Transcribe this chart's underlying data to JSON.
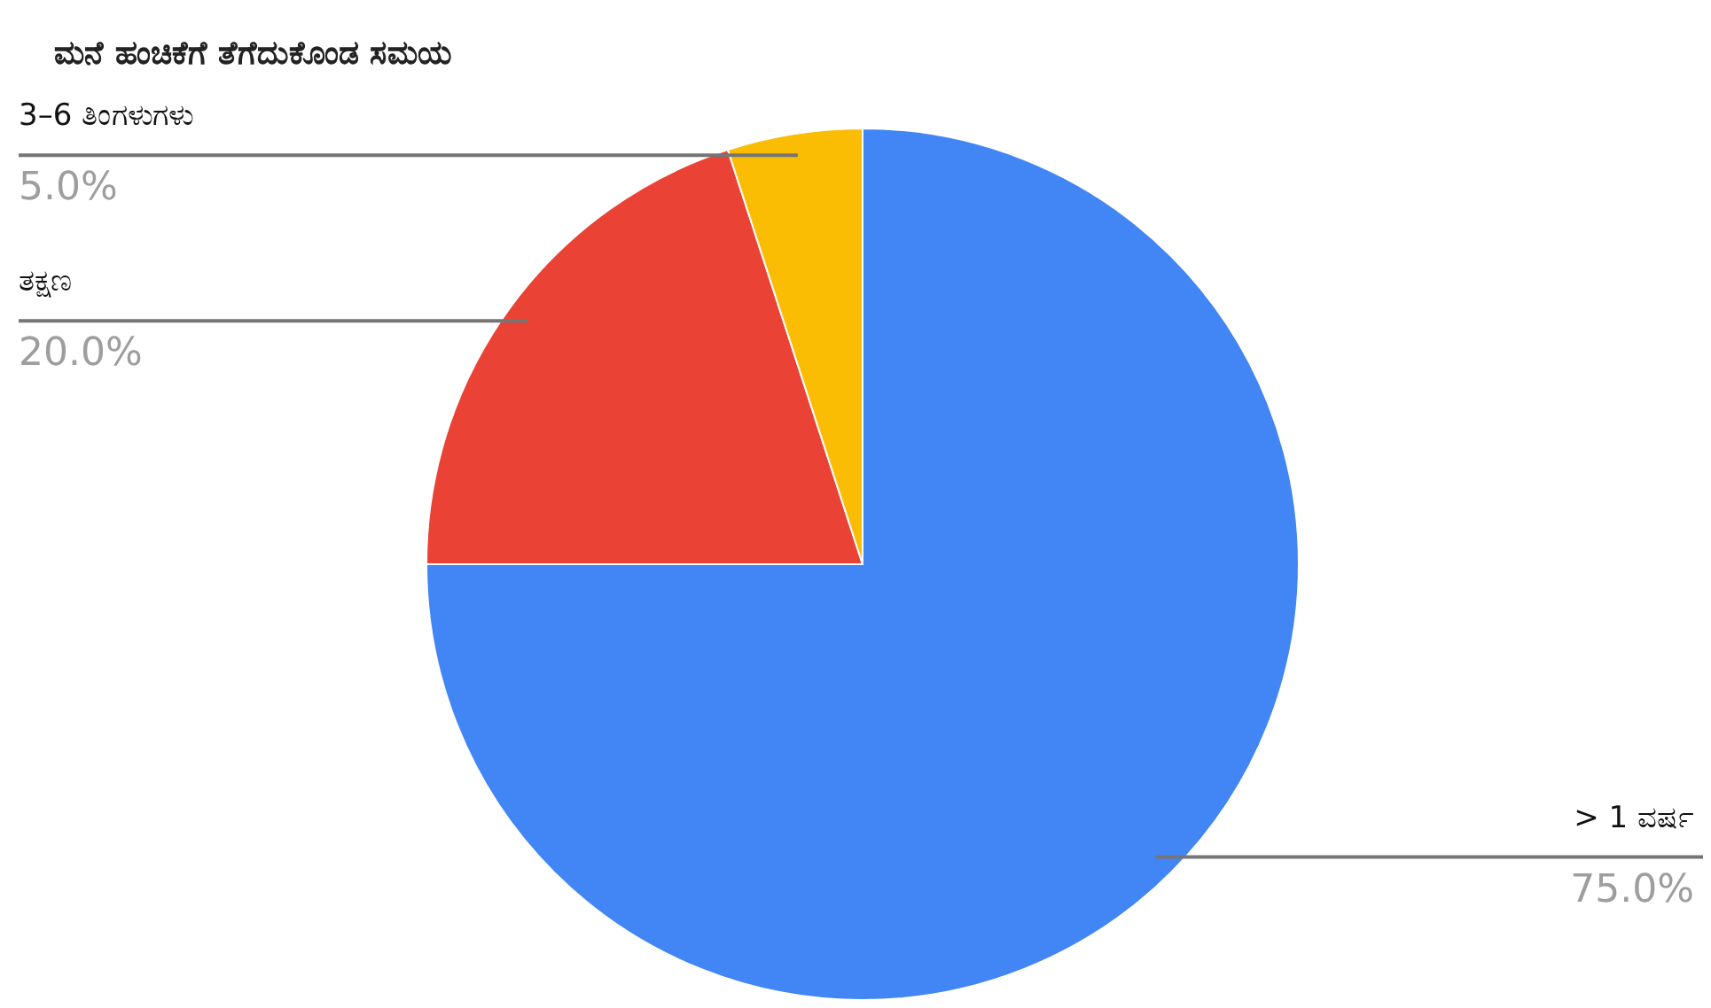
{
  "chart_data": {
    "type": "pie",
    "title": "ಮನೆ ಹಂಚಿಕೆಗೆ ತೆಗೆದುಕೊಂಡ ಸಮಯ",
    "categories": [
      "> 1 ವರ್ಷ",
      "ತಕ್ಷಣ",
      "3–6 ತಿಂಗಳುಗಳು"
    ],
    "values": [
      75,
      20,
      5
    ],
    "colors": [
      "#4285f4",
      "#ea4335",
      "#fbbc04"
    ],
    "value_labels": [
      "75.0%",
      "20.0%",
      "5.0%"
    ]
  }
}
